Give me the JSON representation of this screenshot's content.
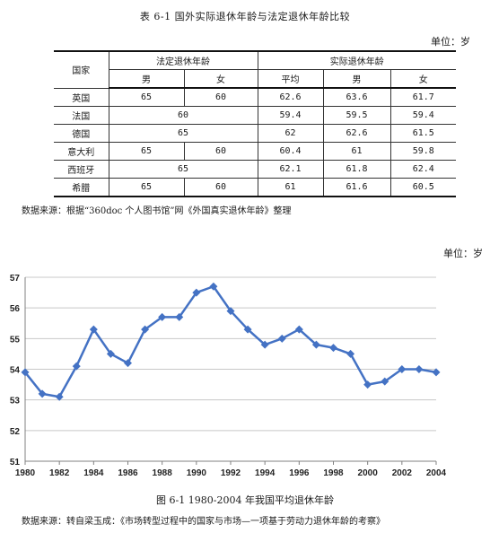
{
  "table": {
    "title": "表 6-1   国外实际退休年龄与法定退休年龄比较",
    "unit": "单位：岁",
    "header": {
      "country": "国家",
      "legal_group": "法定退休年龄",
      "actual_group": "实际退休年龄",
      "legal_male": "男",
      "legal_female": "女",
      "actual_avg": "平均",
      "actual_male": "男",
      "actual_female": "女"
    },
    "rows": [
      {
        "country": "英国",
        "legal_male": "65",
        "legal_female": "60",
        "legal_both": "",
        "avg": "62.6",
        "male": "63.6",
        "female": "61.7"
      },
      {
        "country": "法国",
        "legal_male": "",
        "legal_female": "",
        "legal_both": "60",
        "avg": "59.4",
        "male": "59.5",
        "female": "59.4"
      },
      {
        "country": "德国",
        "legal_male": "",
        "legal_female": "",
        "legal_both": "65",
        "avg": "62",
        "male": "62.6",
        "female": "61.5"
      },
      {
        "country": "意大利",
        "legal_male": "65",
        "legal_female": "60",
        "legal_both": "",
        "avg": "60.4",
        "male": "61",
        "female": "59.8"
      },
      {
        "country": "西班牙",
        "legal_male": "",
        "legal_female": "",
        "legal_both": "65",
        "avg": "62.1",
        "male": "61.8",
        "female": "62.4"
      },
      {
        "country": "希腊",
        "legal_male": "65",
        "legal_female": "60",
        "legal_both": "",
        "avg": "61",
        "male": "61.6",
        "female": "60.5"
      }
    ],
    "source": "数据来源：根据“360doc 个人图书馆”网《外国真实退休年龄》整理"
  },
  "figure": {
    "unit": "单位：岁",
    "caption": "图 6-1   1980-2004 年我国平均退休年龄",
    "source": "数据来源：转自梁玉成：《市场转型过程中的国家与市场—一项基于劳动力退休年龄的考察》"
  },
  "chart_data": {
    "type": "line",
    "title": "",
    "xlabel": "",
    "ylabel": "",
    "x": [
      1980,
      1981,
      1982,
      1983,
      1984,
      1985,
      1986,
      1987,
      1988,
      1989,
      1990,
      1991,
      1992,
      1993,
      1994,
      1995,
      1996,
      1997,
      1998,
      1999,
      2000,
      2001,
      2002,
      2003,
      2004
    ],
    "series": [
      {
        "values": [
          53.9,
          53.2,
          53.1,
          54.1,
          55.3,
          54.5,
          54.2,
          55.3,
          55.7,
          55.7,
          56.5,
          56.7,
          55.9,
          55.3,
          54.8,
          55.0,
          55.3,
          54.8,
          54.7,
          54.5,
          53.5,
          53.6,
          54.0,
          54.0,
          53.9
        ]
      }
    ],
    "xticks": [
      "1980",
      "1982",
      "1984",
      "1986",
      "1988",
      "1990",
      "1992",
      "1994",
      "1996",
      "1998",
      "2000",
      "2002",
      "2004"
    ],
    "yticks": [
      "51",
      "52",
      "53",
      "54",
      "55",
      "56",
      "57"
    ],
    "xlim": [
      1980,
      2004
    ],
    "ylim": [
      51,
      57
    ],
    "grid": true,
    "colors": {
      "line": "#4472C4",
      "grid": "#c8c8c8",
      "axis": "#808080"
    }
  }
}
